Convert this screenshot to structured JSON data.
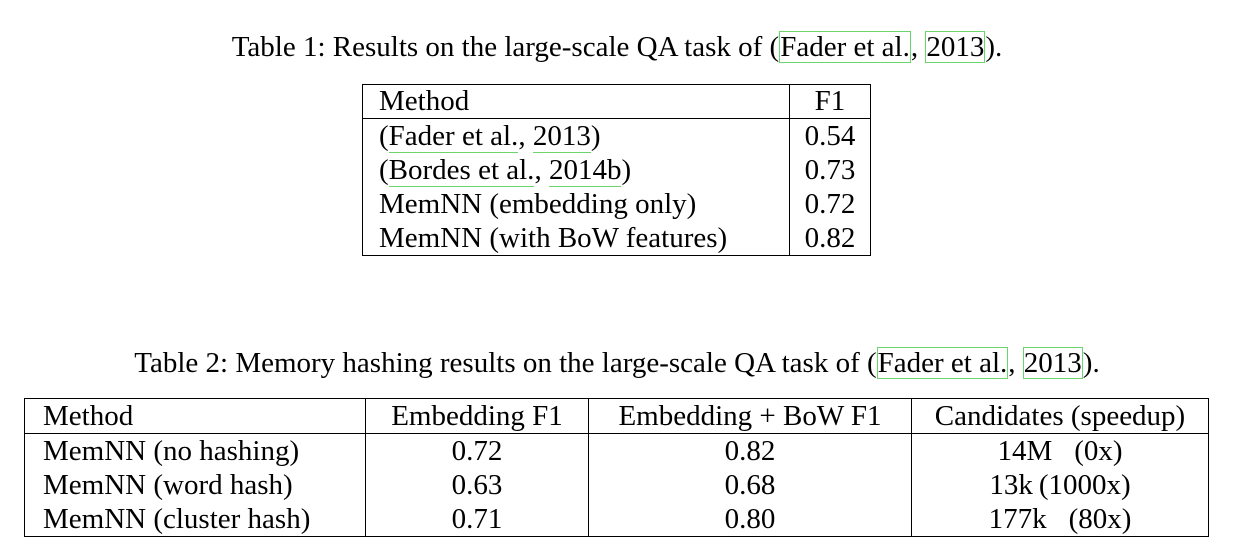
{
  "table1": {
    "caption_prefix": "Table 1: Results on the large-scale QA task of (",
    "caption_cite_author": "Fader et al.",
    "caption_cite_sep": ", ",
    "caption_cite_year": "2013",
    "caption_suffix": ").",
    "headers": [
      "Method",
      "F1"
    ],
    "rows": [
      {
        "method_prefix": "(",
        "cite_author": "Fader et al.",
        "cite_sep": ", ",
        "cite_year": "2013",
        "method_suffix": ")",
        "f1": "0.54"
      },
      {
        "method_prefix": "(",
        "cite_author": "Bordes et al.",
        "cite_sep": ", ",
        "cite_year": "2014b",
        "method_suffix": ")",
        "f1": "0.73"
      },
      {
        "method": "MemNN (embedding only)",
        "f1": "0.72"
      },
      {
        "method": "MemNN (with BoW features)",
        "f1": "0.82"
      }
    ]
  },
  "table2": {
    "caption_prefix": "Table 2: Memory hashing results on the large-scale QA task of (",
    "caption_cite_author": "Fader et al.",
    "caption_cite_sep": ", ",
    "caption_cite_year": "2013",
    "caption_suffix": ").",
    "headers": [
      "Method",
      "Embedding F1",
      "Embedding + BoW F1",
      "Candidates (speedup)"
    ],
    "rows": [
      {
        "method": "MemNN (no hashing)",
        "emb_f1": "0.72",
        "emb_bow_f1": "0.82",
        "candidates": "14M",
        "speedup": "(0x)"
      },
      {
        "method": "MemNN (word hash)",
        "emb_f1": "0.63",
        "emb_bow_f1": "0.68",
        "candidates": "13k",
        "speedup": "(1000x)"
      },
      {
        "method": "MemNN (cluster hash)",
        "emb_f1": "0.71",
        "emb_bow_f1": "0.80",
        "candidates": "177k",
        "speedup": "(80x)"
      }
    ]
  },
  "colors": {
    "citation_link_border": "#6bd56b",
    "text": "#000000",
    "background": "#ffffff"
  }
}
